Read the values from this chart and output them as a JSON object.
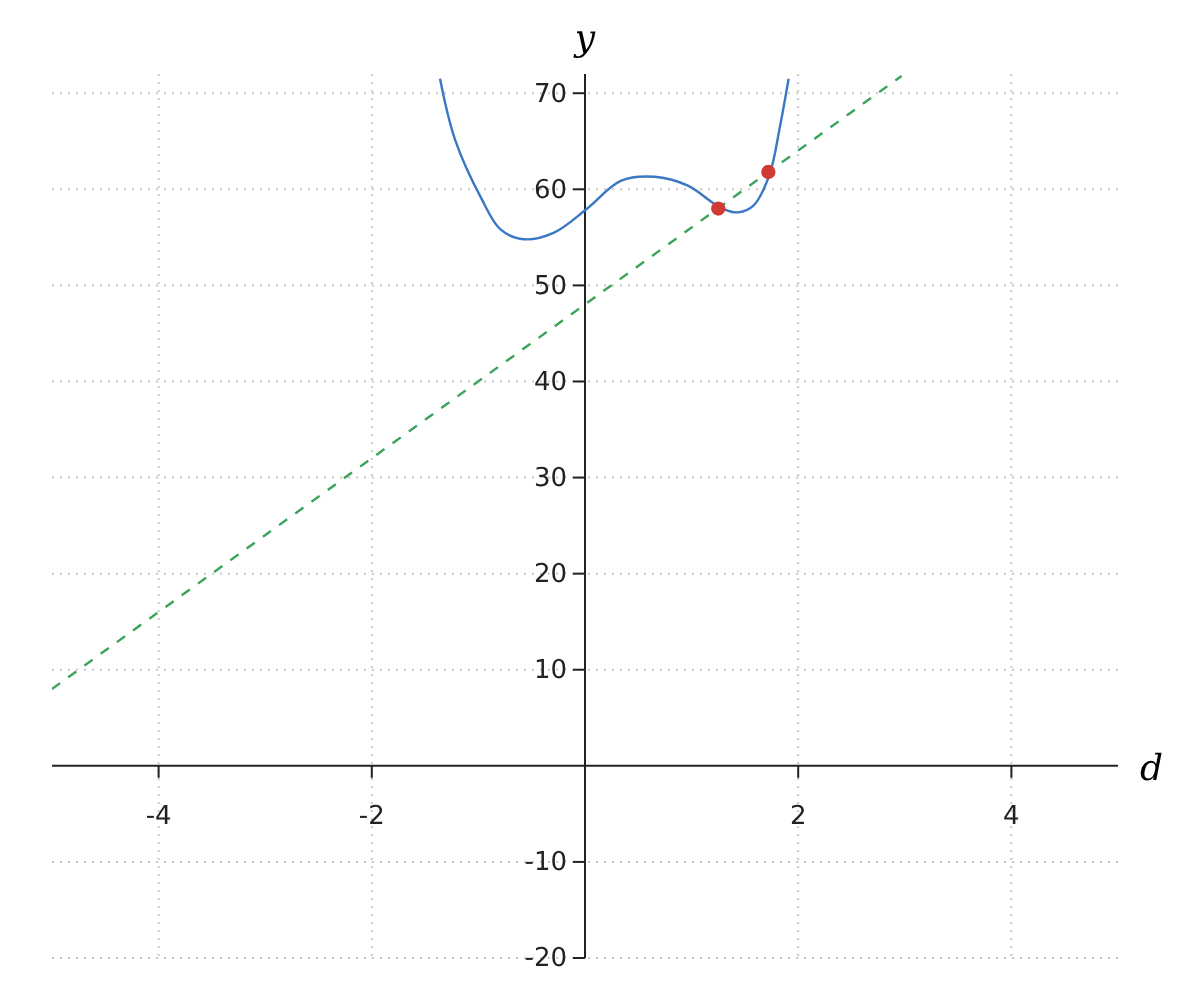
{
  "chart_data": {
    "type": "line",
    "xlabel": "d",
    "ylabel": "y",
    "xlim": [
      -5,
      5
    ],
    "ylim": [
      -20,
      72
    ],
    "xticks": [
      -4,
      -2,
      2,
      4
    ],
    "yticks": [
      -20,
      -10,
      10,
      20,
      30,
      40,
      50,
      60,
      70
    ],
    "grid": true,
    "series": [
      {
        "color": "#3a78c3",
        "line_style": "solid",
        "x": [
          -1.36,
          -1.22,
          -0.97,
          -0.79,
          -0.57,
          -0.29,
          0.01,
          0.34,
          0.65,
          0.96,
          1.27,
          1.43,
          1.58,
          1.73,
          1.83,
          1.91
        ],
        "values": [
          71.5,
          65.2,
          59,
          55.8,
          54.8,
          55.5,
          57.9,
          60.9,
          61.3,
          60.4,
          58.1,
          57.6,
          58.3,
          61.5,
          66.6,
          71.5
        ]
      },
      {
        "color": "#3aa35a",
        "line_style": "dashed",
        "x": [
          -5,
          2.97
        ],
        "values": [
          8,
          71.8
        ]
      },
      {
        "type": "scatter",
        "color": "#d03a34",
        "marker": "circle",
        "x": [
          1.25,
          1.72
        ],
        "values": [
          58,
          61.8
        ]
      }
    ]
  }
}
